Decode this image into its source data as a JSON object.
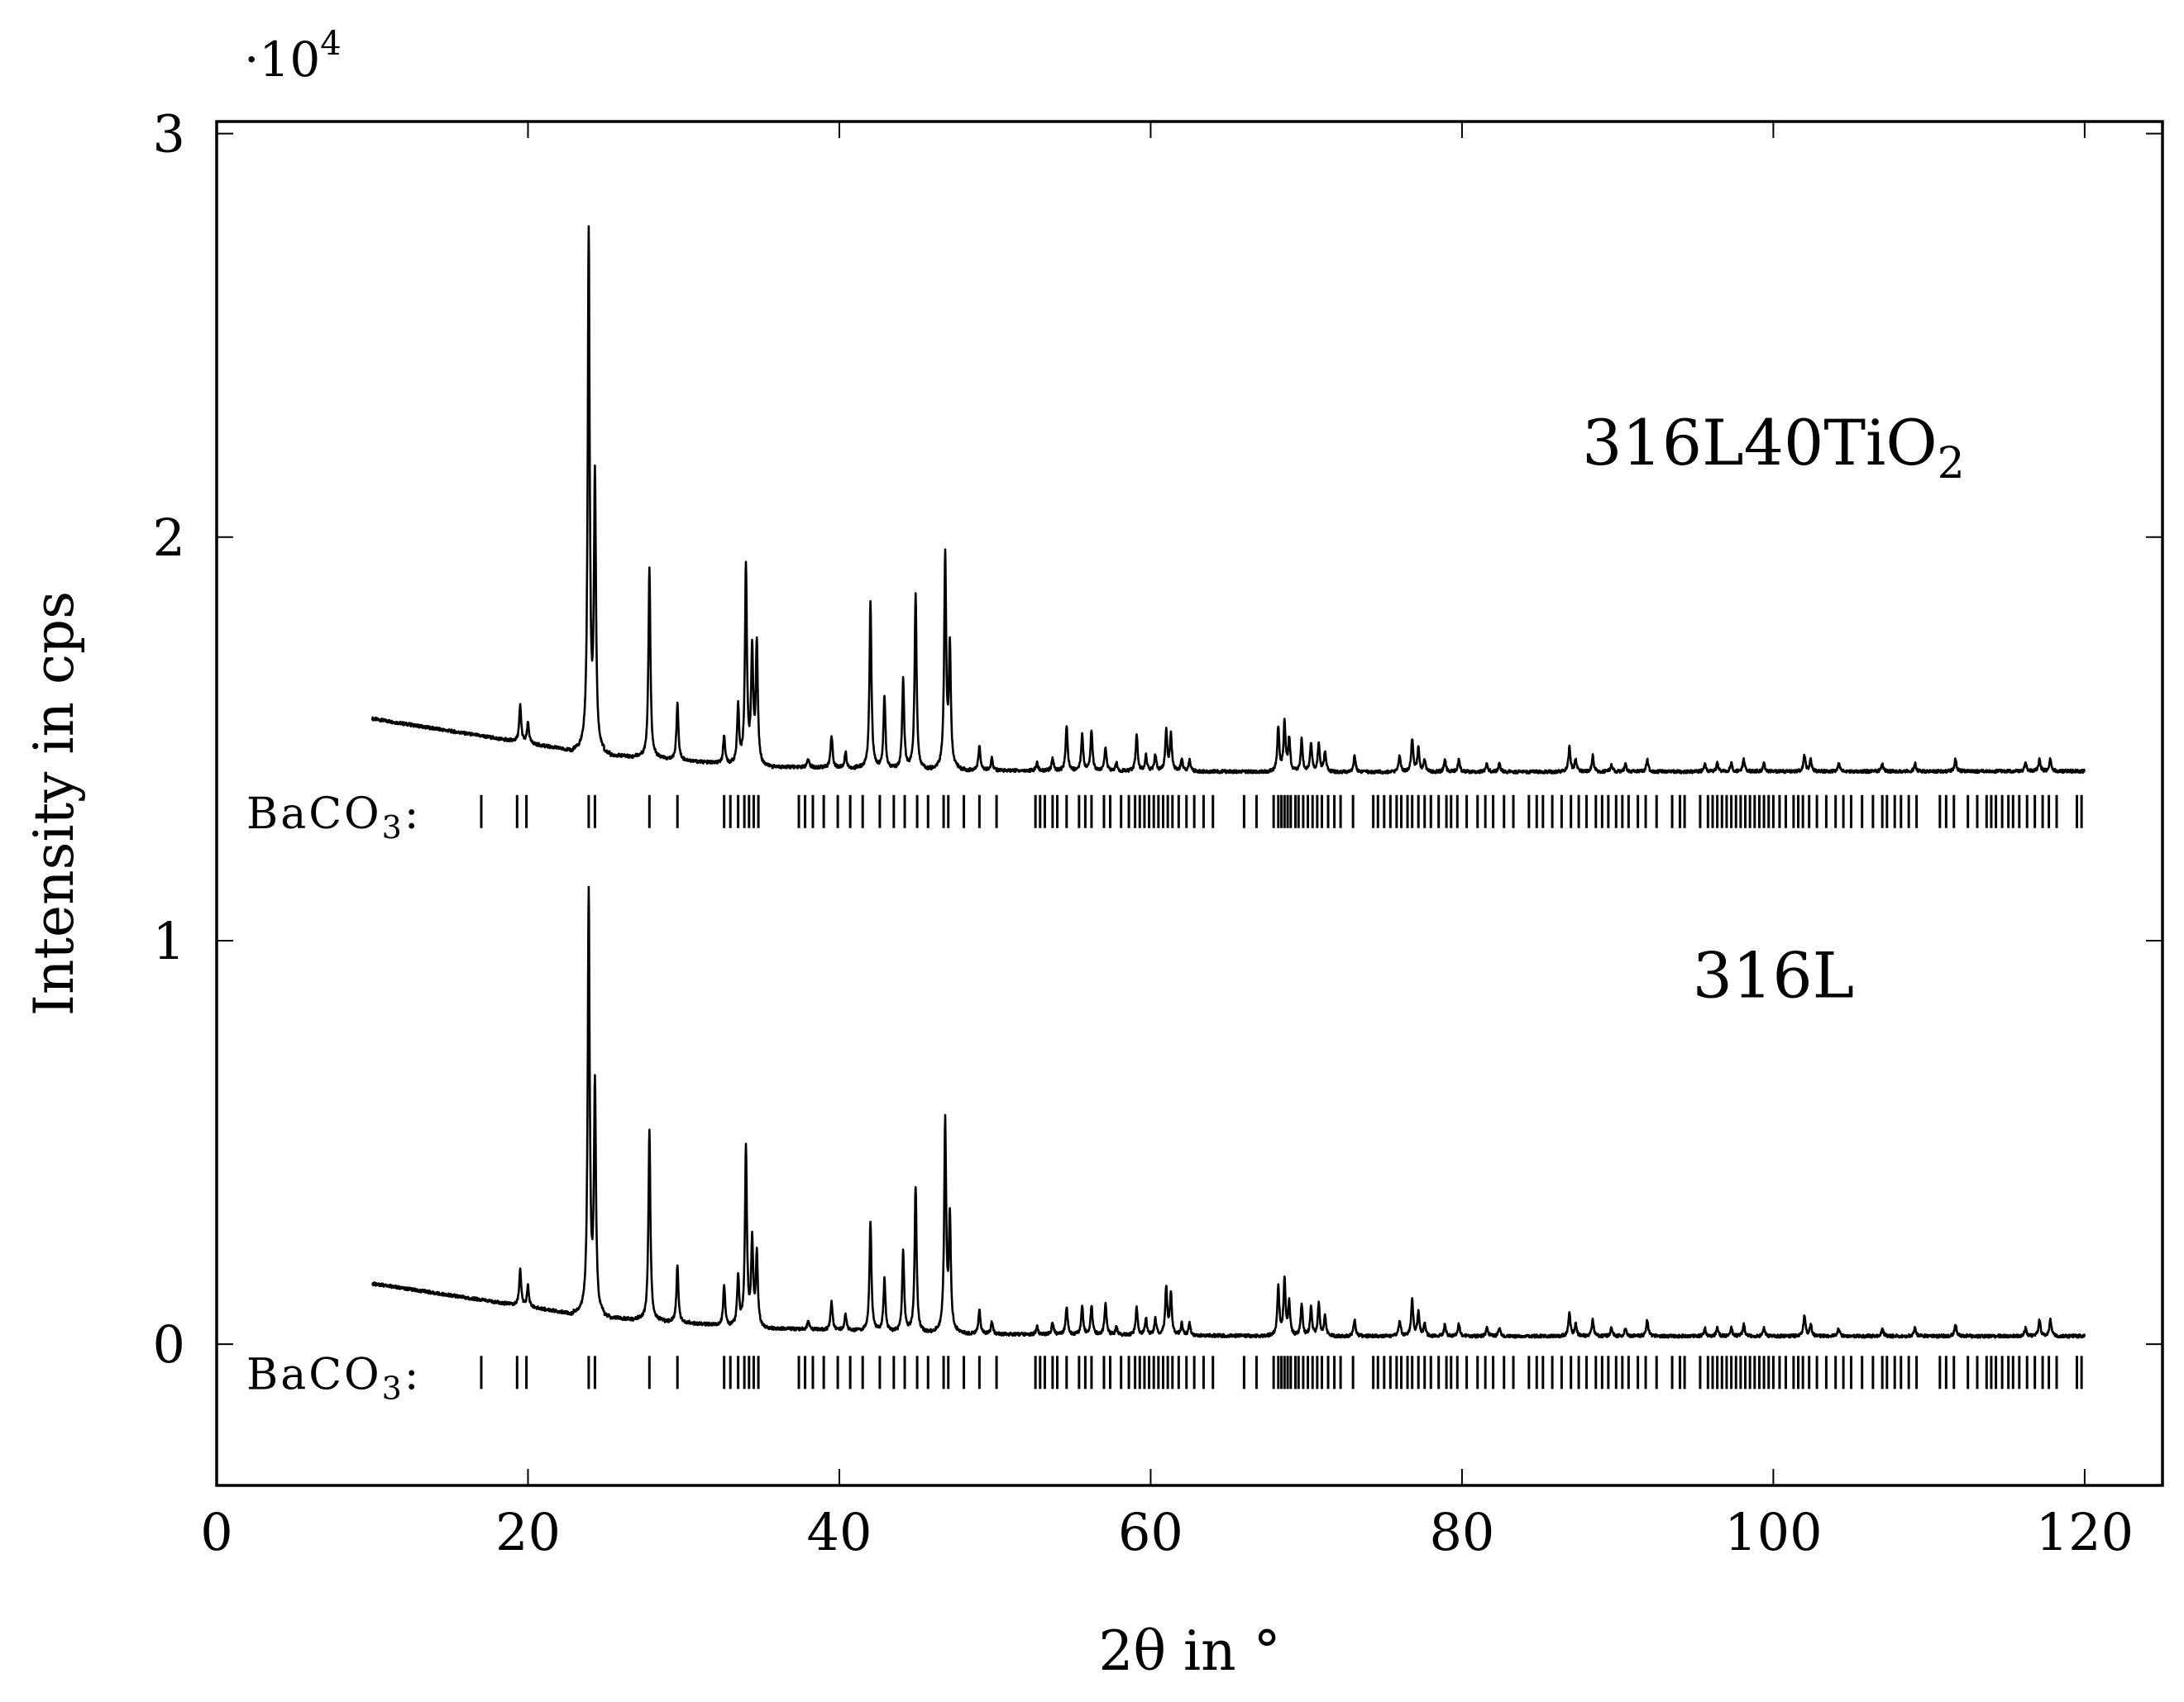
{
  "chart_data": {
    "type": "line",
    "xlabel": "2θ in °",
    "ylabel": "Intensity in cps",
    "y_scale_factor": "·10",
    "y_scale_exponent": "4",
    "xlim": [
      0,
      125
    ],
    "ylim": [
      -0.35,
      3.03
    ],
    "y_multiplier": 10000,
    "x_ticks": [
      0,
      20,
      40,
      60,
      80,
      100,
      120
    ],
    "y_ticks": [
      0,
      1,
      2,
      3
    ],
    "x_tick_labels": [
      "0",
      "20",
      "40",
      "60",
      "80",
      "100",
      "120"
    ],
    "y_tick_labels": [
      "0",
      "1",
      "2",
      "3"
    ],
    "grid": false,
    "legend": "none",
    "line_color": "#000000",
    "x_range": [
      10,
      120
    ],
    "series": [
      {
        "name": "316L40TiO",
        "name_subscript": "2",
        "baseline": [
          [
            10,
            1.55
          ],
          [
            24,
            1.465
          ],
          [
            35,
            1.432
          ],
          [
            50,
            1.422
          ],
          [
            70,
            1.418
          ],
          [
            120,
            1.42
          ]
        ],
        "peaks": [
          [
            19.5,
            0.09
          ],
          [
            20.0,
            0.05
          ],
          [
            23.9,
            1.28
          ],
          [
            24.3,
            0.67
          ],
          [
            27.8,
            0.47
          ],
          [
            29.6,
            0.14
          ],
          [
            32.6,
            0.07
          ],
          [
            33.5,
            0.14
          ],
          [
            34.0,
            0.49
          ],
          [
            34.4,
            0.28
          ],
          [
            34.7,
            0.3
          ],
          [
            38.0,
            0.02
          ],
          [
            39.5,
            0.08
          ],
          [
            40.4,
            0.04
          ],
          [
            42.0,
            0.41
          ],
          [
            42.9,
            0.18
          ],
          [
            44.1,
            0.22
          ],
          [
            44.9,
            0.43
          ],
          [
            46.8,
            0.53
          ],
          [
            47.1,
            0.3
          ],
          [
            49.0,
            0.06
          ],
          [
            49.8,
            0.03
          ],
          [
            52.7,
            0.02
          ],
          [
            53.7,
            0.03
          ],
          [
            54.6,
            0.11
          ],
          [
            55.6,
            0.09
          ],
          [
            56.2,
            0.1
          ],
          [
            57.1,
            0.06
          ],
          [
            57.8,
            0.02
          ],
          [
            59.1,
            0.09
          ],
          [
            59.7,
            0.04
          ],
          [
            60.3,
            0.04
          ],
          [
            61.0,
            0.1
          ],
          [
            61.3,
            0.09
          ],
          [
            62.0,
            0.03
          ],
          [
            62.5,
            0.03
          ],
          [
            68.2,
            0.11
          ],
          [
            68.6,
            0.12
          ],
          [
            68.9,
            0.08
          ],
          [
            69.7,
            0.08
          ],
          [
            70.3,
            0.07
          ],
          [
            70.8,
            0.07
          ],
          [
            71.2,
            0.05
          ],
          [
            73.1,
            0.04
          ],
          [
            76.0,
            0.04
          ],
          [
            76.8,
            0.08
          ],
          [
            77.2,
            0.06
          ],
          [
            77.6,
            0.03
          ],
          [
            78.9,
            0.03
          ],
          [
            79.8,
            0.03
          ],
          [
            81.6,
            0.02
          ],
          [
            82.4,
            0.02
          ],
          [
            86.9,
            0.06
          ],
          [
            87.3,
            0.03
          ],
          [
            88.4,
            0.04
          ],
          [
            89.6,
            0.02
          ],
          [
            90.5,
            0.02
          ],
          [
            91.9,
            0.03
          ],
          [
            95.6,
            0.02
          ],
          [
            96.4,
            0.02
          ],
          [
            97.3,
            0.02
          ],
          [
            98.1,
            0.03
          ],
          [
            99.4,
            0.02
          ],
          [
            102.0,
            0.04
          ],
          [
            102.4,
            0.03
          ],
          [
            104.2,
            0.02
          ],
          [
            107.0,
            0.02
          ],
          [
            109.1,
            0.02
          ],
          [
            111.7,
            0.03
          ],
          [
            116.2,
            0.02
          ],
          [
            117.1,
            0.03
          ],
          [
            117.8,
            0.03
          ]
        ]
      },
      {
        "name": "316L",
        "name_subscript": "",
        "baseline": [
          [
            10,
            0.15
          ],
          [
            24,
            0.07
          ],
          [
            35,
            0.04
          ],
          [
            50,
            0.025
          ],
          [
            70,
            0.02
          ],
          [
            120,
            0.02
          ]
        ],
        "peaks": [
          [
            19.5,
            0.09
          ],
          [
            20.0,
            0.05
          ],
          [
            23.9,
            1.04
          ],
          [
            24.3,
            0.56
          ],
          [
            27.8,
            0.47
          ],
          [
            29.6,
            0.14
          ],
          [
            32.6,
            0.1
          ],
          [
            33.5,
            0.12
          ],
          [
            34.0,
            0.44
          ],
          [
            34.4,
            0.21
          ],
          [
            34.7,
            0.18
          ],
          [
            38.0,
            0.02
          ],
          [
            39.5,
            0.07
          ],
          [
            40.4,
            0.04
          ],
          [
            42.0,
            0.27
          ],
          [
            42.9,
            0.13
          ],
          [
            44.1,
            0.2
          ],
          [
            44.9,
            0.36
          ],
          [
            46.8,
            0.52
          ],
          [
            47.1,
            0.28
          ],
          [
            49.0,
            0.06
          ],
          [
            49.8,
            0.03
          ],
          [
            52.7,
            0.02
          ],
          [
            53.7,
            0.03
          ],
          [
            54.6,
            0.07
          ],
          [
            55.6,
            0.07
          ],
          [
            56.2,
            0.07
          ],
          [
            57.1,
            0.08
          ],
          [
            57.8,
            0.02
          ],
          [
            59.1,
            0.07
          ],
          [
            59.7,
            0.04
          ],
          [
            60.3,
            0.04
          ],
          [
            61.0,
            0.12
          ],
          [
            61.3,
            0.1
          ],
          [
            62.0,
            0.03
          ],
          [
            62.5,
            0.03
          ],
          [
            68.2,
            0.12
          ],
          [
            68.6,
            0.14
          ],
          [
            68.9,
            0.08
          ],
          [
            69.7,
            0.08
          ],
          [
            70.3,
            0.07
          ],
          [
            70.8,
            0.08
          ],
          [
            71.2,
            0.05
          ],
          [
            73.1,
            0.04
          ],
          [
            76.0,
            0.04
          ],
          [
            76.8,
            0.09
          ],
          [
            77.2,
            0.06
          ],
          [
            77.6,
            0.03
          ],
          [
            78.9,
            0.03
          ],
          [
            79.8,
            0.03
          ],
          [
            81.6,
            0.02
          ],
          [
            82.4,
            0.02
          ],
          [
            86.9,
            0.06
          ],
          [
            87.3,
            0.03
          ],
          [
            88.4,
            0.04
          ],
          [
            89.6,
            0.02
          ],
          [
            90.5,
            0.02
          ],
          [
            91.9,
            0.04
          ],
          [
            95.6,
            0.02
          ],
          [
            96.4,
            0.02
          ],
          [
            97.3,
            0.02
          ],
          [
            98.1,
            0.03
          ],
          [
            99.4,
            0.02
          ],
          [
            102.0,
            0.05
          ],
          [
            102.4,
            0.03
          ],
          [
            104.2,
            0.02
          ],
          [
            107.0,
            0.02
          ],
          [
            109.1,
            0.02
          ],
          [
            111.7,
            0.03
          ],
          [
            116.2,
            0.02
          ],
          [
            117.1,
            0.04
          ],
          [
            117.8,
            0.04
          ]
        ]
      }
    ],
    "reference_phase": {
      "label": "BaCO",
      "label_subscript": "3",
      "label_suffix": ":",
      "row_y": [
        1.32,
        -0.07
      ],
      "line_positions": [
        17.0,
        19.3,
        19.9,
        23.9,
        24.3,
        27.8,
        29.6,
        32.6,
        33.0,
        33.5,
        33.9,
        34.2,
        34.5,
        34.8,
        37.4,
        37.8,
        38.3,
        39.0,
        39.9,
        40.7,
        41.5,
        42.6,
        43.5,
        44.2,
        45.0,
        45.7,
        46.7,
        47.0,
        48.0,
        49.0,
        50.1,
        52.6,
        52.9,
        53.2,
        53.7,
        54.0,
        54.6,
        55.4,
        55.8,
        56.2,
        57.0,
        57.4,
        58.1,
        58.6,
        59.0,
        59.3,
        59.6,
        59.9,
        60.2,
        60.5,
        60.8,
        61.1,
        61.4,
        61.8,
        62.3,
        62.8,
        63.4,
        64.0,
        66.0,
        66.8,
        67.9,
        68.2,
        68.4,
        68.6,
        68.8,
        69.0,
        69.3,
        69.5,
        69.8,
        70.1,
        70.4,
        70.7,
        71.0,
        71.4,
        71.8,
        72.2,
        73.0,
        74.3,
        74.6,
        75.0,
        75.4,
        75.8,
        76.1,
        76.5,
        76.8,
        77.2,
        77.6,
        78.0,
        78.5,
        79.0,
        79.3,
        79.7,
        80.3,
        81.0,
        81.5,
        82.0,
        82.7,
        83.3,
        84.3,
        84.8,
        85.2,
        85.8,
        86.4,
        87.0,
        87.5,
        88.0,
        88.6,
        89.0,
        89.4,
        89.9,
        90.3,
        90.7,
        91.3,
        91.8,
        92.5,
        93.5,
        94.0,
        94.3,
        95.3,
        95.8,
        96.1,
        96.4,
        96.7,
        97.0,
        97.3,
        97.6,
        97.9,
        98.2,
        98.5,
        98.8,
        99.1,
        99.4,
        99.7,
        100.0,
        100.4,
        100.8,
        101.3,
        101.6,
        101.9,
        102.3,
        102.8,
        103.4,
        104.0,
        104.5,
        105.0,
        105.7,
        106.4,
        107.0,
        107.3,
        107.8,
        108.2,
        108.7,
        109.2,
        110.7,
        111.1,
        111.6,
        112.5,
        113.1,
        113.7,
        114.0,
        114.3,
        114.7,
        115.1,
        115.4,
        115.8,
        116.3,
        116.8,
        117.3,
        117.7,
        118.2,
        119.5,
        119.8
      ]
    },
    "series_labels": [
      {
        "text": "316L40TiO",
        "subscript": "2",
        "x": 100,
        "y": 2.18
      },
      {
        "text": "316L",
        "x": 100,
        "y": 0.86
      }
    ]
  }
}
